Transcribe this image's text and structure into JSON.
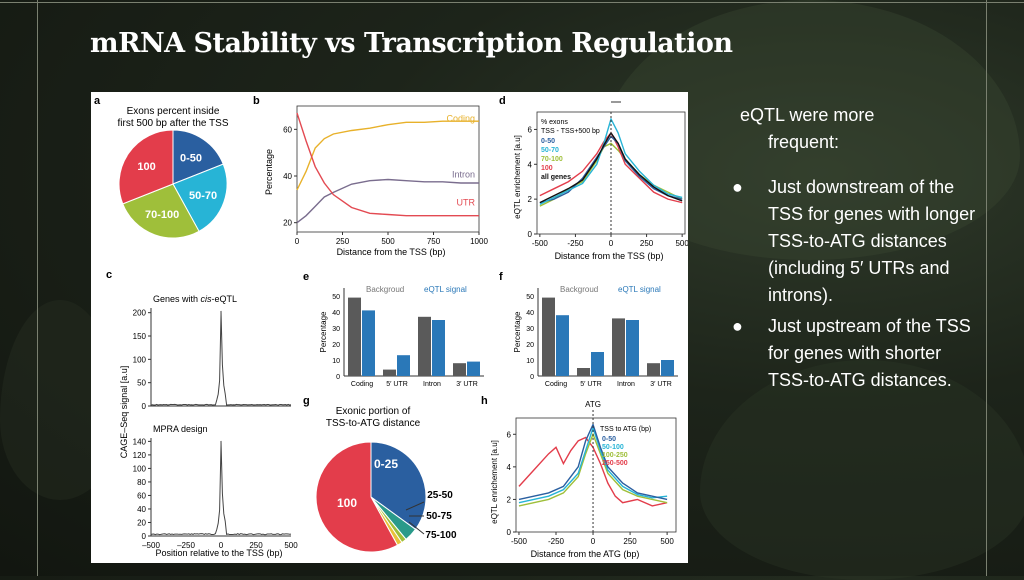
{
  "slide": {
    "title": "mRNA Stability vs Transcription Regulation",
    "notes": {
      "intro_line1": "eQTL were more",
      "intro_line2": "frequent:",
      "bullet_char": "●",
      "bullets": [
        "Just downstream of the TSS for genes with longer TSS-to-ATG distances (including 5′ UTRs and introns).",
        "Just upstream of the TSS for genes with shorter TSS-to-ATG distances."
      ]
    }
  },
  "figure": {
    "panel_letters": [
      "a",
      "b",
      "c",
      "d",
      "e",
      "f",
      "g",
      "h"
    ],
    "a": {
      "title_line1": "Exons percent inside",
      "title_line2": "first 500 bp after the TSS",
      "slices": [
        {
          "label": "0-50",
          "value": 19,
          "color": "#2a5fa0"
        },
        {
          "label": "50-70",
          "value": 23,
          "color": "#27b4d6"
        },
        {
          "label": "70-100",
          "value": 27,
          "color": "#9fbf3a"
        },
        {
          "label": "100",
          "value": 31,
          "color": "#e33d4b"
        }
      ]
    },
    "b": {
      "xlabel": "Distance from the TSS (bp)",
      "ylabel": "Percentage",
      "xticks": [
        "0",
        "250",
        "500",
        "750",
        "1000"
      ],
      "yticks": [
        "20",
        "40",
        "60"
      ],
      "series": [
        {
          "name": "Coding",
          "color": "#e8b12a",
          "x": [
            0,
            50,
            100,
            150,
            200,
            300,
            400,
            500,
            600,
            700,
            800,
            900,
            1000
          ],
          "y": [
            34,
            42,
            52,
            56,
            58,
            59.5,
            60.5,
            62,
            63,
            63,
            63.5,
            63.5,
            63.5
          ]
        },
        {
          "name": "Intron",
          "color": "#7a6d8e",
          "x": [
            0,
            50,
            100,
            150,
            200,
            300,
            400,
            500,
            600,
            700,
            800,
            900,
            1000
          ],
          "y": [
            20,
            23,
            27,
            31,
            33,
            36.5,
            38,
            38.5,
            38,
            37.5,
            37.5,
            37,
            37
          ]
        },
        {
          "name": "UTR",
          "color": "#e34a52",
          "x": [
            0,
            50,
            100,
            150,
            200,
            300,
            400,
            500,
            600,
            700,
            800,
            900,
            1000
          ],
          "y": [
            67,
            55,
            44,
            37,
            32,
            26.5,
            24,
            23.5,
            23,
            23,
            23,
            23,
            23
          ]
        }
      ]
    },
    "c": {
      "ylabel": "CAGE–Seq signal [a.u]",
      "xlabel": "Position relative to the TSS (bp)",
      "top_title_prefix": "Genes with ",
      "top_title_italic": "cis",
      "top_title_suffix": "-eQTL",
      "bottom_title": "MPRA design",
      "yticks_top": [
        "0",
        "50",
        "100",
        "150",
        "200"
      ],
      "yticks_bottom": [
        "0",
        "20",
        "40",
        "60",
        "80",
        "100",
        "120",
        "140"
      ],
      "xticks": [
        "–500",
        "–250",
        "0",
        "250",
        "500"
      ]
    },
    "d": {
      "legend_title1": "% exons",
      "legend_title2": "TSS - TSS+500 bp",
      "legend": [
        {
          "label": "0-50",
          "color": "#2a5fa0"
        },
        {
          "label": "50-70",
          "color": "#27b4d6"
        },
        {
          "label": "70-100",
          "color": "#9fbf3a"
        },
        {
          "label": "100",
          "color": "#e33d4b"
        },
        {
          "label": "all genes",
          "color": "#111111"
        }
      ],
      "ylabel": "eQTL enrichement [a.u]",
      "xlabel": "Distance from the TSS (bp)",
      "xticks": [
        "-500",
        "-250",
        "0",
        "250",
        "500"
      ],
      "yticks": [
        "0",
        "2",
        "4",
        "6"
      ],
      "series": [
        {
          "color": "#9fbf3a",
          "x": [
            -500,
            -400,
            -300,
            -200,
            -100,
            -50,
            0,
            50,
            100,
            200,
            300,
            400,
            500
          ],
          "y": [
            1.6,
            2.0,
            2.6,
            3.0,
            4.2,
            5.0,
            5.2,
            4.8,
            4.3,
            3.4,
            2.8,
            2.4,
            2.0
          ]
        },
        {
          "color": "#e33d4b",
          "x": [
            -500,
            -400,
            -300,
            -200,
            -100,
            -50,
            0,
            50,
            100,
            200,
            300,
            400,
            500
          ],
          "y": [
            2.2,
            2.6,
            3.0,
            3.6,
            4.6,
            5.3,
            5.8,
            5.0,
            4.0,
            3.2,
            2.4,
            2.0,
            1.8
          ]
        },
        {
          "color": "#2a5fa0",
          "x": [
            -500,
            -400,
            -300,
            -200,
            -100,
            -50,
            0,
            50,
            100,
            200,
            300,
            400,
            500
          ],
          "y": [
            1.8,
            2.0,
            2.4,
            3.2,
            4.4,
            5.0,
            5.6,
            5.2,
            4.2,
            3.3,
            2.6,
            2.2,
            2.0
          ]
        },
        {
          "color": "#27b4d6",
          "x": [
            -500,
            -400,
            -300,
            -200,
            -100,
            -50,
            0,
            50,
            100,
            200,
            300,
            400,
            500
          ],
          "y": [
            1.7,
            2.1,
            2.5,
            2.9,
            4.0,
            5.2,
            6.6,
            5.8,
            4.6,
            3.6,
            2.8,
            2.3,
            2.1
          ]
        },
        {
          "color": "#111111",
          "x": [
            -500,
            -400,
            -300,
            -200,
            -100,
            -50,
            0,
            50,
            100,
            200,
            300,
            400,
            500
          ],
          "y": [
            1.8,
            2.2,
            2.6,
            3.1,
            4.3,
            5.1,
            5.8,
            5.2,
            4.3,
            3.4,
            2.7,
            2.2,
            1.9
          ]
        }
      ]
    },
    "e": {
      "ylabel": "Percentage",
      "legend_bg": "Backgroud",
      "legend_sig": "eQTL signal",
      "categories": [
        "Coding",
        "5′ UTR",
        "Intron",
        "3′ UTR"
      ],
      "yticks": [
        "0",
        "10",
        "20",
        "30",
        "40",
        "50"
      ],
      "background": [
        49,
        4,
        37,
        8
      ],
      "signal": [
        41,
        13,
        35,
        9
      ]
    },
    "f": {
      "ylabel": "Percentage",
      "legend_bg": "Backgroud",
      "legend_sig": "eQTL signal",
      "categories": [
        "Coding",
        "5′ UTR",
        "Intron",
        "3′ UTR"
      ],
      "yticks": [
        "0",
        "10",
        "20",
        "30",
        "40",
        "50"
      ],
      "background": [
        49,
        5,
        36,
        8
      ],
      "signal": [
        38,
        15,
        35,
        10
      ]
    },
    "g": {
      "title_line1": "Exonic portion of",
      "title_line2": "TSS-to-ATG distance",
      "slices": [
        {
          "label": "0-25",
          "value": 35,
          "color": "#2a5fa0"
        },
        {
          "label": "25-50",
          "value": 4,
          "color": "#2a9a8a"
        },
        {
          "label": "50-75",
          "value": 1.5,
          "color": "#9fbf3a"
        },
        {
          "label": "75-100",
          "value": 1.5,
          "color": "#e8c23a"
        },
        {
          "label": "100",
          "value": 58,
          "color": "#e33d4b"
        }
      ]
    },
    "h": {
      "top_label": "ATG",
      "legend_title": "TSS to ATG (bp)",
      "legend": [
        {
          "label": "0-50",
          "color": "#2a5fa0"
        },
        {
          "label": "50-100",
          "color": "#27b4d6"
        },
        {
          "label": "100-250",
          "color": "#9fbf3a"
        },
        {
          "label": "250-500",
          "color": "#e33d4b"
        }
      ],
      "ylabel": "eQTL enrichement [a.u]",
      "xlabel": "Distance from the ATG (bp)",
      "xticks": [
        "-500",
        "-250",
        "0",
        "250",
        "500"
      ],
      "yticks": [
        "0",
        "2",
        "4",
        "6"
      ],
      "series": [
        {
          "color": "#e33d4b",
          "x": [
            -500,
            -400,
            -300,
            -250,
            -200,
            -150,
            -100,
            -50,
            0,
            50,
            100,
            150,
            200,
            300,
            400,
            500
          ],
          "y": [
            2.8,
            3.8,
            4.8,
            5.2,
            4.2,
            5.0,
            5.6,
            5.8,
            5.2,
            4.2,
            3.0,
            2.2,
            1.8,
            2.0,
            1.6,
            1.8
          ]
        },
        {
          "color": "#9fbf3a",
          "x": [
            -500,
            -400,
            -300,
            -200,
            -100,
            -50,
            0,
            50,
            100,
            200,
            300,
            400,
            500
          ],
          "y": [
            1.6,
            1.8,
            2.0,
            2.4,
            3.4,
            4.8,
            6.0,
            4.8,
            3.6,
            2.6,
            2.2,
            2.0,
            1.8
          ]
        },
        {
          "color": "#27b4d6",
          "x": [
            -500,
            -400,
            -300,
            -200,
            -100,
            -50,
            0,
            50,
            100,
            200,
            300,
            400,
            500
          ],
          "y": [
            1.8,
            2.0,
            2.2,
            2.6,
            3.6,
            5.0,
            6.4,
            5.0,
            3.8,
            2.8,
            2.3,
            2.1,
            2.2
          ]
        },
        {
          "color": "#2a5fa0",
          "x": [
            -500,
            -400,
            -300,
            -200,
            -100,
            -50,
            0,
            50,
            100,
            200,
            300,
            400,
            500
          ],
          "y": [
            2.0,
            2.2,
            2.4,
            2.8,
            4.0,
            5.6,
            6.6,
            5.2,
            4.0,
            3.0,
            2.4,
            2.2,
            2.0
          ]
        }
      ]
    }
  }
}
